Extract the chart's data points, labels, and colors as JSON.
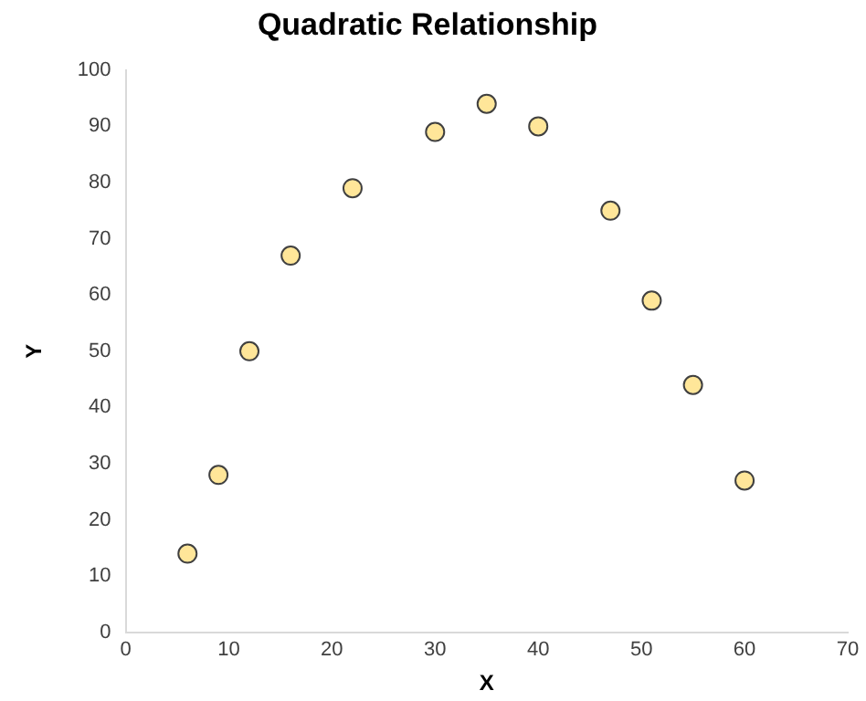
{
  "chart_data": {
    "type": "scatter",
    "title": "Quadratic Relationship",
    "xlabel": "X",
    "ylabel": "Y",
    "x": [
      6,
      9,
      12,
      16,
      22,
      30,
      35,
      40,
      47,
      51,
      55,
      60
    ],
    "series": [
      {
        "color": "#ffe699",
        "values": [
          14,
          28,
          50,
          67,
          79,
          89,
          94,
          90,
          75,
          59,
          44,
          27
        ]
      }
    ],
    "xlim": [
      0,
      70
    ],
    "xticks": [
      0,
      10,
      20,
      30,
      40,
      50,
      60,
      70
    ],
    "ylim": [
      0,
      100
    ],
    "yticks": [
      0,
      10,
      20,
      30,
      40,
      50,
      60,
      70,
      80,
      90,
      100
    ],
    "grid": false,
    "legend": false,
    "marker": "circle"
  }
}
